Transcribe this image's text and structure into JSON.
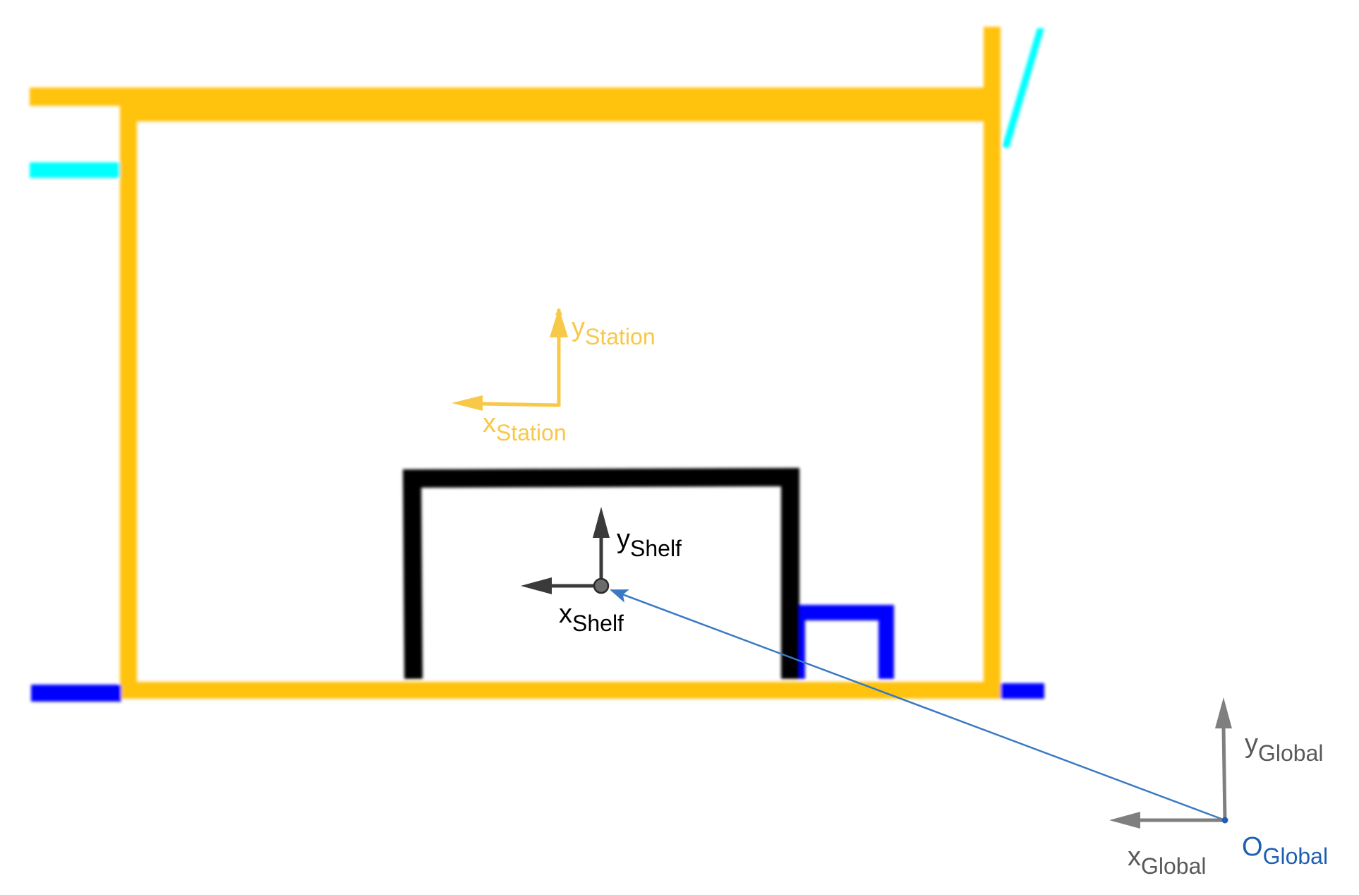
{
  "colors": {
    "station": "#ffc20e",
    "station_label": "#f8c848",
    "shelf": "#000000",
    "shelf_axis": "#3a3a3a",
    "global_axis": "#7f7f7f",
    "global_label": "#595959",
    "origin": "#1e5fb4",
    "vector": "#3b78c4",
    "cyan": "#00ffff",
    "blue": "#0000ff"
  },
  "labels": {
    "station_y": {
      "main": "y",
      "sub": "Station"
    },
    "station_x": {
      "main": "x",
      "sub": "Station"
    },
    "shelf_y": {
      "main": "y",
      "sub": "Shelf"
    },
    "shelf_x": {
      "main": "x",
      "sub": "Shelf"
    },
    "global_y": {
      "main": "y",
      "sub": "Global"
    },
    "global_x": {
      "main": "x",
      "sub": "Global"
    },
    "global_origin": {
      "main": "O",
      "sub": "Global"
    }
  }
}
